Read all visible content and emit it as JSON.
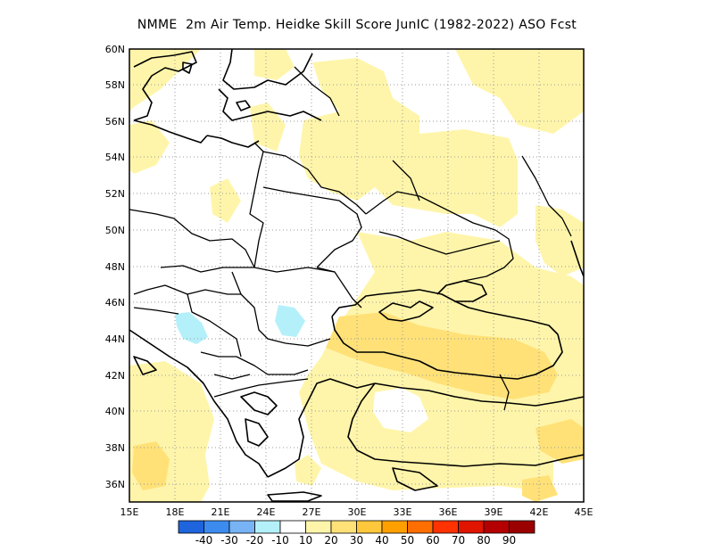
{
  "title": "NMME  2m Air Temp. Heidke Skill Score JunIC (1982-2022) ASO Fcst",
  "map": {
    "lon_range": [
      15,
      45
    ],
    "lat_range": [
      35,
      60
    ],
    "x_ticks": [
      "15E",
      "18E",
      "21E",
      "24E",
      "27E",
      "30E",
      "33E",
      "36E",
      "39E",
      "42E",
      "45E"
    ],
    "y_ticks": [
      "36N",
      "38N",
      "40N",
      "42N",
      "44N",
      "46N",
      "48N",
      "50N",
      "52N",
      "54N",
      "56N",
      "58N",
      "60N"
    ],
    "grid": true
  },
  "colorbar": {
    "labels": [
      "-40",
      "-30",
      "-20",
      "-10",
      "10",
      "20",
      "30",
      "40",
      "50",
      "60",
      "70",
      "80",
      "90"
    ],
    "colors": [
      "#1e64dc",
      "#3c8cf0",
      "#78b4f5",
      "#b4f0fa",
      "#ffffff",
      "#fff5aa",
      "#ffe178",
      "#ffc83c",
      "#ffa000",
      "#ff6e00",
      "#ff3200",
      "#e11400",
      "#b40000",
      "#9b0000"
    ]
  }
}
